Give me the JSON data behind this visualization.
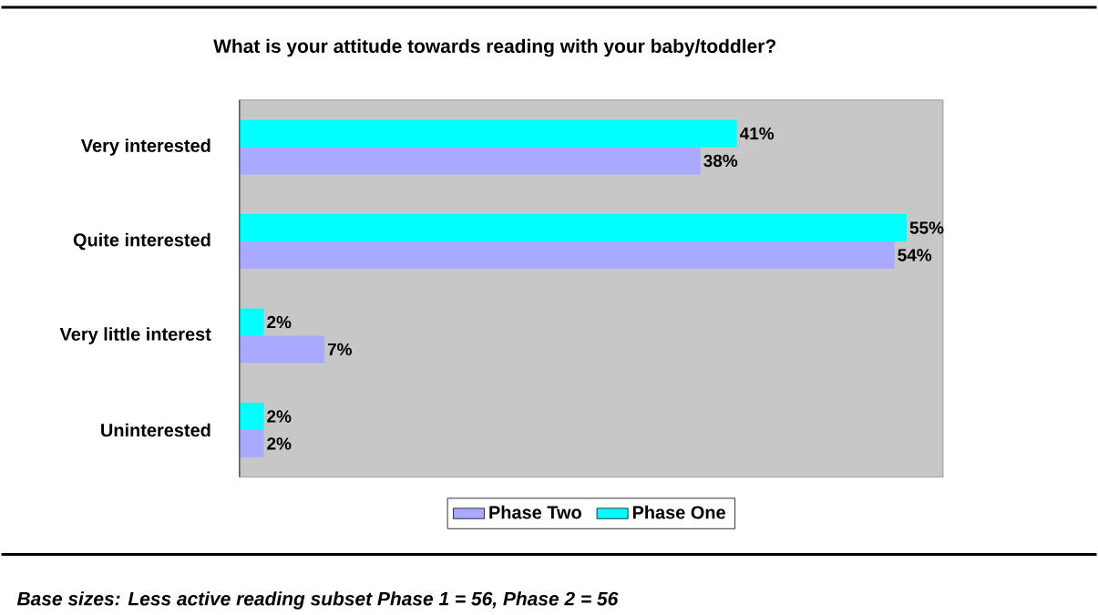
{
  "chart_data": {
    "type": "bar",
    "orientation": "horizontal",
    "title": "What is your attitude towards reading with your baby/toddler?",
    "categories": [
      "Very interested",
      "Quite interested",
      "Very little interest",
      "Uninterested"
    ],
    "series": [
      {
        "name": "Phase Two",
        "color": "#a9a9ff",
        "values": [
          38,
          54,
          7,
          2
        ],
        "value_labels": [
          "38%",
          "54%",
          "7%",
          "2%"
        ]
      },
      {
        "name": "Phase One",
        "color": "#00ffff",
        "values": [
          41,
          55,
          2,
          2
        ],
        "value_labels": [
          "41%",
          "55%",
          "2%",
          "2%"
        ]
      }
    ],
    "xlim": [
      0,
      58
    ],
    "tick_labels": "y",
    "legend": "bottom",
    "annotations": [
      "Base sizes: Less active reading subset Phase 1 = 56, Phase 2 = 56"
    ]
  }
}
